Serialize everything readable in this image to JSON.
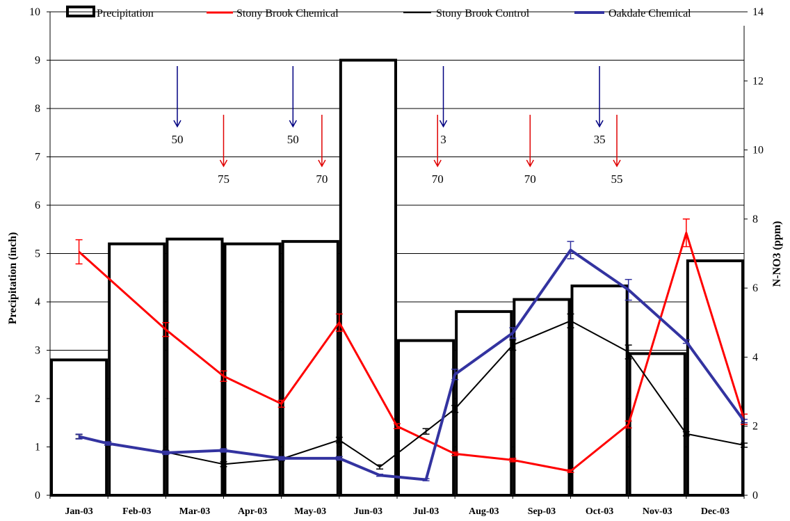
{
  "chart_data": {
    "type": "bar",
    "categories": [
      "Jan-03",
      "Feb-03",
      "Mar-03",
      "Apr-03",
      "May-03",
      "Jun-03",
      "Jul-03",
      "Aug-03",
      "Sep-03",
      "Oct-03",
      "Nov-03",
      "Dec-03"
    ],
    "xlabel": "",
    "ylabel": "Precipitation (inch)",
    "y2label": "N-NO3 (ppm)",
    "ylim": [
      0,
      10
    ],
    "y2lim": [
      0,
      14
    ],
    "y_ticks": [
      "0",
      "1",
      "2",
      "3",
      "4",
      "5",
      "6",
      "7",
      "8",
      "9",
      "10"
    ],
    "y2_ticks": [
      "0",
      "2",
      "4",
      "6",
      "8",
      "10",
      "12",
      "14"
    ],
    "grid": true,
    "legend_position": "top",
    "bar_series": {
      "name": "Precipitation",
      "values": [
        2.8,
        5.2,
        5.3,
        5.2,
        5.25,
        9.0,
        3.2,
        3.8,
        4.05,
        4.33,
        2.93,
        4.85
      ]
    },
    "line_series": [
      {
        "name": "Stony Brook Chemical",
        "color": "#ff0000",
        "x": [
          0.5,
          2.0,
          3.0,
          4.0,
          5.0,
          6.0,
          7.0,
          8.0,
          9.0,
          10.0,
          11.0,
          12.0
        ],
        "values": [
          7.05,
          4.8,
          3.45,
          2.65,
          5.0,
          2.0,
          1.2,
          1.02,
          0.7,
          2.05,
          7.6,
          2.2
        ],
        "errors": [
          0.35,
          0.2,
          0.15,
          0.1,
          0.25,
          0.07,
          0.05,
          0.05,
          0.04,
          0.1,
          0.4,
          0.15
        ]
      },
      {
        "name": "Stony Brook Control",
        "color": "#000000",
        "x": [
          0.5,
          1.0,
          2.0,
          3.0,
          4.0,
          5.0,
          5.7,
          6.5,
          7.0,
          8.0,
          9.0,
          10.0,
          11.0,
          12.0
        ],
        "values": [
          1.7,
          1.5,
          1.25,
          0.9,
          1.05,
          1.6,
          0.82,
          1.85,
          2.5,
          4.35,
          5.05,
          4.15,
          1.78,
          1.45
        ],
        "errors": [
          0.06,
          0.05,
          0.05,
          0.07,
          0.05,
          0.08,
          0.06,
          0.08,
          0.1,
          0.15,
          0.2,
          0.2,
          0.06,
          0.06
        ]
      },
      {
        "name": "Oakdale Chemical",
        "color": "#3333a0",
        "x": [
          0.5,
          1.0,
          2.0,
          3.0,
          4.0,
          5.0,
          5.7,
          6.5,
          7.0,
          8.0,
          9.0,
          10.0,
          11.0,
          12.0
        ],
        "values": [
          1.7,
          1.5,
          1.23,
          1.3,
          1.07,
          1.07,
          0.58,
          0.45,
          3.5,
          4.7,
          7.1,
          5.95,
          4.45,
          2.15
        ],
        "errors": [
          0.07,
          0.05,
          0.05,
          0.05,
          0.05,
          0.05,
          0.03,
          0.03,
          0.15,
          0.15,
          0.25,
          0.3,
          0.05,
          0.05
        ]
      }
    ],
    "annotations": {
      "blue_arrows": [
        {
          "x": 2.2,
          "label": "50"
        },
        {
          "x": 4.2,
          "label": "50"
        },
        {
          "x": 6.8,
          "label": "3"
        },
        {
          "x": 9.5,
          "label": "35"
        }
      ],
      "red_arrows": [
        {
          "x": 3.0,
          "label": "75"
        },
        {
          "x": 4.7,
          "label": "70"
        },
        {
          "x": 6.7,
          "label": "70"
        },
        {
          "x": 8.3,
          "label": "70"
        },
        {
          "x": 9.8,
          "label": "55"
        }
      ]
    }
  }
}
